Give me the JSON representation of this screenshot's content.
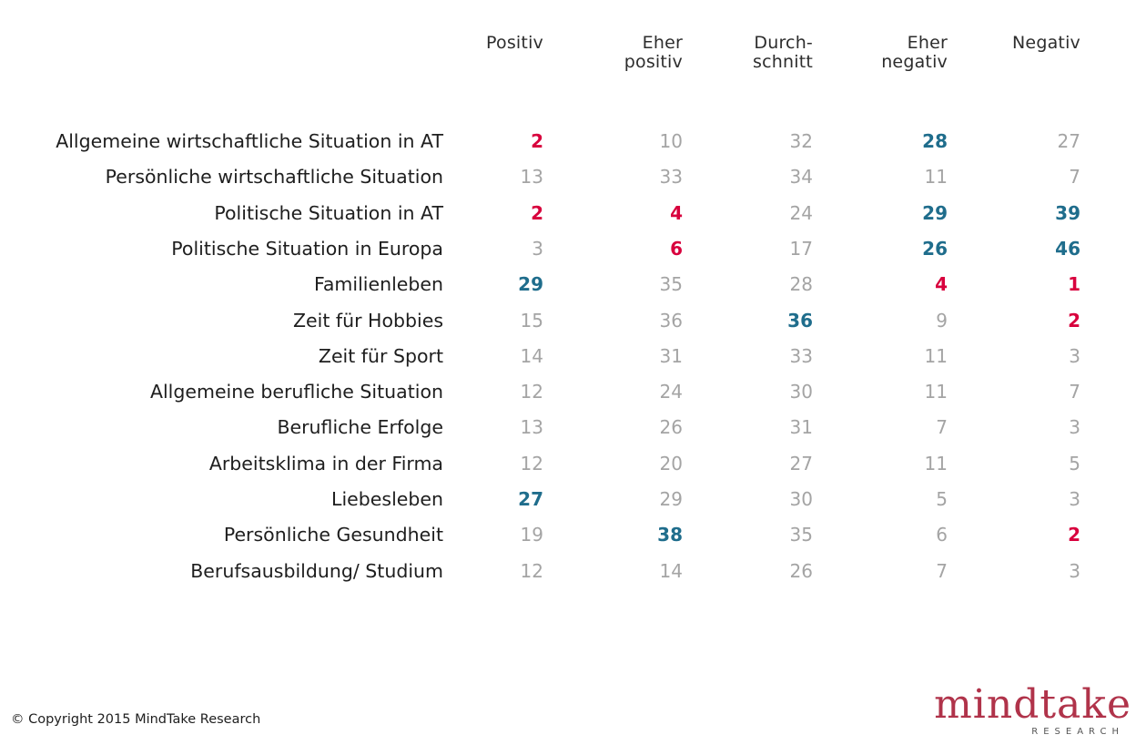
{
  "chart_data": {
    "type": "table",
    "columns": [
      [
        "Positiv"
      ],
      [
        "Eher",
        "positiv"
      ],
      [
        "Durch-",
        "schnitt"
      ],
      [
        "Eher",
        "negativ"
      ],
      [
        "Negativ"
      ]
    ],
    "rows": [
      {
        "label": "Allgemeine wirtschaftliche Situation in AT",
        "values": [
          2,
          10,
          32,
          28,
          27
        ],
        "highlight": [
          "low",
          "",
          "",
          "high",
          ""
        ]
      },
      {
        "label": "Persönliche wirtschaftliche Situation",
        "values": [
          13,
          33,
          34,
          11,
          7
        ],
        "highlight": [
          "",
          "",
          "",
          "",
          ""
        ]
      },
      {
        "label": "Politische Situation in AT",
        "values": [
          2,
          4,
          24,
          29,
          39
        ],
        "highlight": [
          "low",
          "low",
          "",
          "high",
          "high"
        ]
      },
      {
        "label": "Politische Situation in Europa",
        "values": [
          3,
          6,
          17,
          26,
          46
        ],
        "highlight": [
          "",
          "low",
          "",
          "high",
          "high"
        ]
      },
      {
        "label": "Familienleben",
        "values": [
          29,
          35,
          28,
          4,
          1
        ],
        "highlight": [
          "high",
          "",
          "",
          "low",
          "low"
        ]
      },
      {
        "label": "Zeit für Hobbies",
        "values": [
          15,
          36,
          36,
          9,
          2
        ],
        "highlight": [
          "",
          "",
          "high",
          "",
          "low"
        ]
      },
      {
        "label": "Zeit für Sport",
        "values": [
          14,
          31,
          33,
          11,
          3
        ],
        "highlight": [
          "",
          "",
          "",
          "",
          ""
        ]
      },
      {
        "label": "Allgemeine berufliche Situation",
        "values": [
          12,
          24,
          30,
          11,
          7
        ],
        "highlight": [
          "",
          "",
          "",
          "",
          ""
        ]
      },
      {
        "label": "Berufliche Erfolge",
        "values": [
          13,
          26,
          31,
          7,
          3
        ],
        "highlight": [
          "",
          "",
          "",
          "",
          ""
        ]
      },
      {
        "label": "Arbeitsklima in der Firma",
        "values": [
          12,
          20,
          27,
          11,
          5
        ],
        "highlight": [
          "",
          "",
          "",
          "",
          ""
        ]
      },
      {
        "label": "Liebesleben",
        "values": [
          27,
          29,
          30,
          5,
          3
        ],
        "highlight": [
          "high",
          "",
          "",
          "",
          ""
        ]
      },
      {
        "label": "Persönliche Gesundheit",
        "values": [
          19,
          38,
          35,
          6,
          2
        ],
        "highlight": [
          "",
          "high",
          "",
          "",
          "low"
        ]
      },
      {
        "label": "Berufsausbildung/ Studium",
        "values": [
          12,
          14,
          26,
          7,
          3
        ],
        "highlight": [
          "",
          "",
          "",
          "",
          ""
        ]
      }
    ]
  },
  "colors": {
    "highlight_low": "#d8003d",
    "highlight_high": "#1f6d8c",
    "normal_value": "#a4a4a4",
    "logo": "#b0334a"
  },
  "footer": {
    "copyright": "© Copyright 2015 MindTake Research"
  },
  "logo": {
    "word": "mindtake",
    "sub": "RESEARCH"
  }
}
